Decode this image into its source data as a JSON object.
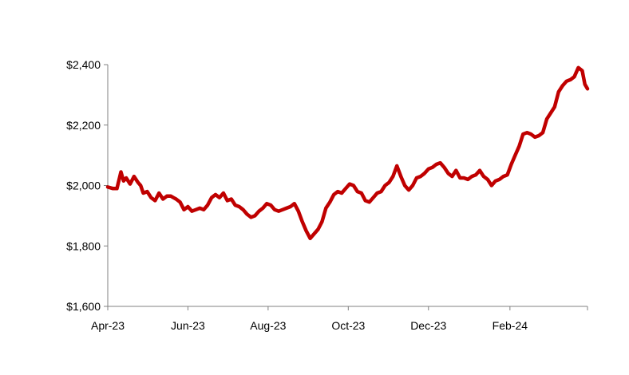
{
  "chart_data": {
    "type": "line",
    "title": "",
    "xlabel": "",
    "ylabel": "",
    "ylim": [
      1600,
      2400
    ],
    "y_ticks": [
      1600,
      1800,
      2000,
      2200,
      2400
    ],
    "y_tick_labels": [
      "$1,600",
      "$1,800",
      "$2,000",
      "$2,200",
      "$2,400"
    ],
    "x_tick_labels": [
      "Apr-23",
      "Jun-23",
      "Aug-23",
      "Oct-23",
      "Dec-23",
      "Feb-24"
    ],
    "x_tick_dates": [
      "2023-04-01",
      "2023-06-01",
      "2023-08-01",
      "2023-10-01",
      "2023-12-01",
      "2024-02-01"
    ],
    "x_range": [
      "2023-04-01",
      "2024-03-31"
    ],
    "grid": false,
    "legend": "none",
    "line_color": "#C00000",
    "series": [
      {
        "x": [
          "2023-04-01",
          "2023-04-05",
          "2023-04-08",
          "2023-04-11",
          "2023-04-13",
          "2023-04-15",
          "2023-04-18",
          "2023-04-21",
          "2023-04-24",
          "2023-04-26",
          "2023-04-28",
          "2023-05-01",
          "2023-05-04",
          "2023-05-07",
          "2023-05-10",
          "2023-05-13",
          "2023-05-16",
          "2023-05-19",
          "2023-05-21",
          "2023-05-23",
          "2023-05-26",
          "2023-05-29",
          "2023-06-01",
          "2023-06-04",
          "2023-06-07",
          "2023-06-10",
          "2023-06-13",
          "2023-06-16",
          "2023-06-19",
          "2023-06-22",
          "2023-06-25",
          "2023-06-28",
          "2023-07-01",
          "2023-07-04",
          "2023-07-07",
          "2023-07-10",
          "2023-07-13",
          "2023-07-16",
          "2023-07-19",
          "2023-07-22",
          "2023-07-25",
          "2023-07-28",
          "2023-07-31",
          "2023-08-03",
          "2023-08-06",
          "2023-08-09",
          "2023-08-12",
          "2023-08-15",
          "2023-08-18",
          "2023-08-21",
          "2023-08-24",
          "2023-08-27",
          "2023-08-30",
          "2023-09-02",
          "2023-09-05",
          "2023-09-08",
          "2023-09-11",
          "2023-09-14",
          "2023-09-17",
          "2023-09-20",
          "2023-09-23",
          "2023-09-26",
          "2023-09-29",
          "2023-10-02",
          "2023-10-05",
          "2023-10-08",
          "2023-10-11",
          "2023-10-14",
          "2023-10-17",
          "2023-10-20",
          "2023-10-23",
          "2023-10-26",
          "2023-10-29",
          "2023-11-01",
          "2023-11-04",
          "2023-11-07",
          "2023-11-10",
          "2023-11-13",
          "2023-11-16",
          "2023-11-19",
          "2023-11-22",
          "2023-11-25",
          "2023-11-28",
          "2023-12-01",
          "2023-12-04",
          "2023-12-07",
          "2023-12-10",
          "2023-12-13",
          "2023-12-16",
          "2023-12-19",
          "2023-12-22",
          "2023-12-25",
          "2023-12-28",
          "2023-12-31",
          "2024-01-03",
          "2024-01-06",
          "2024-01-09",
          "2024-01-12",
          "2024-01-15",
          "2024-01-18",
          "2024-01-21",
          "2024-01-24",
          "2024-01-27",
          "2024-01-30",
          "2024-02-02",
          "2024-02-05",
          "2024-02-08",
          "2024-02-11",
          "2024-02-14",
          "2024-02-17",
          "2024-02-20",
          "2024-02-23",
          "2024-02-26",
          "2024-02-29",
          "2024-03-03",
          "2024-03-06",
          "2024-03-09",
          "2024-03-12",
          "2024-03-15",
          "2024-03-18",
          "2024-03-21",
          "2024-03-24",
          "2024-03-27",
          "2024-03-29",
          "2024-03-31"
        ],
        "y": [
          1995,
          1990,
          1990,
          2045,
          2015,
          2025,
          2005,
          2030,
          2010,
          2000,
          1975,
          1980,
          1960,
          1950,
          1975,
          1955,
          1965,
          1965,
          1960,
          1955,
          1945,
          1920,
          1930,
          1915,
          1920,
          1925,
          1920,
          1935,
          1960,
          1970,
          1960,
          1975,
          1950,
          1955,
          1935,
          1930,
          1920,
          1905,
          1895,
          1900,
          1915,
          1925,
          1940,
          1935,
          1920,
          1915,
          1920,
          1925,
          1930,
          1940,
          1915,
          1880,
          1850,
          1825,
          1840,
          1855,
          1880,
          1925,
          1945,
          1970,
          1980,
          1975,
          1990,
          2005,
          2000,
          1980,
          1975,
          1950,
          1945,
          1960,
          1975,
          1980,
          2000,
          2010,
          2030,
          2065,
          2030,
          2000,
          1985,
          2000,
          2025,
          2030,
          2040,
          2055,
          2060,
          2070,
          2075,
          2060,
          2040,
          2030,
          2050,
          2025,
          2025,
          2020,
          2030,
          2035,
          2050,
          2030,
          2020,
          2000,
          2015,
          2020,
          2030,
          2035,
          2070,
          2100,
          2130,
          2170,
          2175,
          2170,
          2160,
          2165,
          2175,
          2220,
          2240,
          2260,
          2310,
          2330,
          2345,
          2350,
          2360,
          2390,
          2380,
          2335,
          2320
        ]
      }
    ]
  }
}
